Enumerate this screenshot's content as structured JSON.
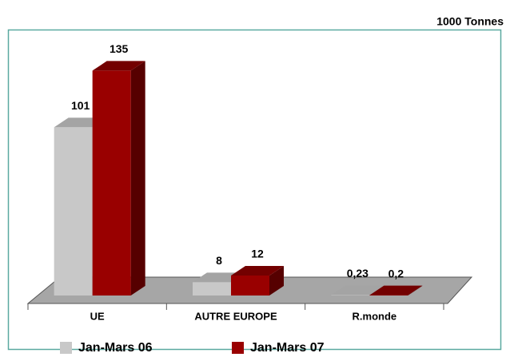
{
  "chart_data": {
    "type": "bar3d",
    "unit": "1000 Tonnes",
    "categories": [
      "UE",
      "AUTRE EUROPE",
      "R.monde"
    ],
    "series": [
      {
        "name": "Jan-Mars 06",
        "color": "#c8c8c8",
        "top_color": "#a4a4a4",
        "side_color": "#8c8c8c",
        "values": [
          101,
          8,
          0.23
        ],
        "value_labels": [
          "101",
          "8",
          "0,23"
        ]
      },
      {
        "name": "Jan-Mars 07",
        "color": "#990000",
        "top_color": "#730000",
        "side_color": "#560000",
        "values": [
          135,
          12,
          0.2
        ],
        "value_labels": [
          "135",
          "12",
          "0,2"
        ]
      }
    ],
    "ylim": [
      0,
      140
    ],
    "legend": "bottom"
  }
}
